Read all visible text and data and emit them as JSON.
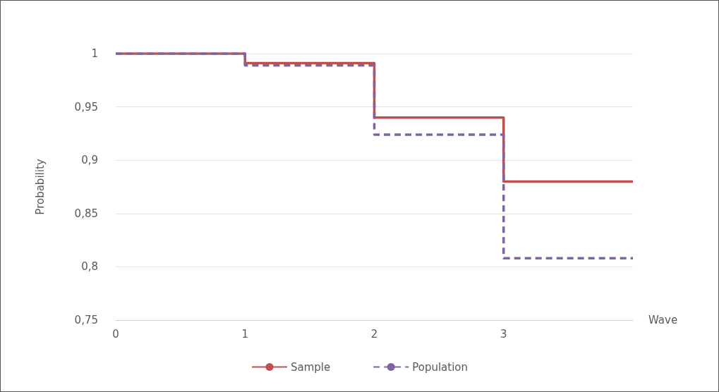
{
  "chart_data": {
    "type": "step",
    "xlabel": "Wave",
    "ylabel": "Probability",
    "x": [
      0,
      1,
      2,
      3,
      4
    ],
    "series": [
      {
        "name": "Sample",
        "color": "#c0504d",
        "line_style": "solid",
        "values": [
          1,
          0.991,
          0.94,
          0.88,
          0.88
        ]
      },
      {
        "name": "Population",
        "color": "#8064a2",
        "line_style": "dashed",
        "values": [
          1,
          0.989,
          0.924,
          0.808,
          0.808
        ]
      }
    ],
    "xlim": [
      0,
      4
    ],
    "xticks": [
      0,
      1,
      2,
      3
    ],
    "ylim": [
      0.75,
      1
    ],
    "yticks": [
      {
        "value": 0.75,
        "label": "0,75"
      },
      {
        "value": 0.8,
        "label": "0,8"
      },
      {
        "value": 0.85,
        "label": "0,85"
      },
      {
        "value": 0.9,
        "label": "0,9"
      },
      {
        "value": 0.95,
        "label": "0,95"
      },
      {
        "value": 1,
        "label": "1"
      }
    ],
    "grid": "y",
    "legend": "bottom",
    "marker": "none"
  }
}
